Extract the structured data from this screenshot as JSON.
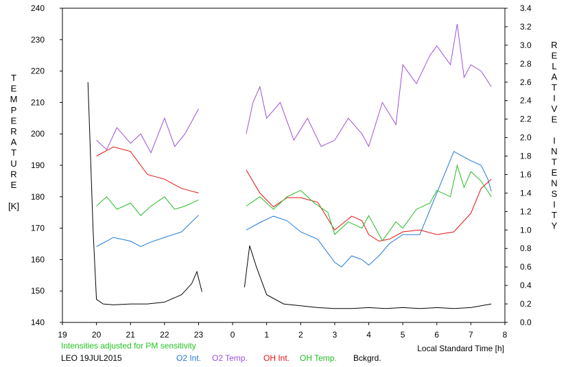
{
  "chart_data": {
    "type": "line",
    "left_axis_label": [
      "T",
      "E",
      "M",
      "P",
      "E",
      "R",
      "A",
      "T",
      "U",
      "R",
      "E",
      "",
      "[K]"
    ],
    "right_axis_label": [
      "R",
      "E",
      "L",
      "A",
      "T",
      "I",
      "V",
      "E",
      "",
      "I",
      "N",
      "T",
      "E",
      "N",
      "S",
      "I",
      "T",
      "Y"
    ],
    "xlabel": "Local Standard Time [h]",
    "x_ticks": [
      "19",
      "20",
      "21",
      "22",
      "23",
      "0",
      "1",
      "2",
      "3",
      "4",
      "5",
      "6",
      "7",
      "8"
    ],
    "xlim": [
      19,
      32
    ],
    "y_left_ticks": [
      "140",
      "150",
      "160",
      "170",
      "180",
      "190",
      "200",
      "210",
      "220",
      "230",
      "240"
    ],
    "ylim_left": [
      140,
      240
    ],
    "y_right_ticks": [
      "0.0",
      "0.2",
      "0.4",
      "0.6",
      "0.8",
      "1.0",
      "1.2",
      "1.4",
      "1.6",
      "1.8",
      "2.0",
      "2.2",
      "2.4",
      "2.6",
      "2.8",
      "3.0",
      "3.2",
      "3.4"
    ],
    "ylim_right": [
      0,
      3.4
    ],
    "note": "Intensities adjusted for PM sensitivity",
    "station_date": "LEO 19JUL2015",
    "grid": false,
    "legend_position": "bottom",
    "series": [
      {
        "name": "O2 Int.",
        "axis": "right",
        "color": "#1f78d4",
        "x": [
          20.0,
          20.5,
          21.0,
          21.3,
          21.6,
          22.0,
          22.5,
          23.0,
          24.4,
          24.8,
          25.2,
          25.6,
          26.0,
          26.5,
          27.0,
          27.2,
          27.5,
          27.8,
          28.0,
          28.3,
          28.6,
          29.0,
          29.5,
          30.0,
          30.5,
          31.0,
          31.3,
          31.5,
          31.6
        ],
        "values": [
          0.82,
          0.92,
          0.88,
          0.82,
          0.87,
          0.92,
          0.98,
          1.16,
          1.0,
          1.08,
          1.15,
          1.1,
          0.98,
          0.9,
          0.65,
          0.6,
          0.72,
          0.68,
          0.62,
          0.72,
          0.85,
          0.95,
          0.95,
          1.4,
          1.85,
          1.75,
          1.7,
          1.55,
          1.42
        ]
      },
      {
        "name": "O2 Temp.",
        "axis": "left",
        "color": "#9b4fd8",
        "x": [
          20.0,
          20.3,
          20.6,
          21.0,
          21.3,
          21.6,
          22.0,
          22.3,
          22.6,
          23.0,
          24.4,
          24.6,
          24.8,
          25.0,
          25.4,
          25.8,
          26.2,
          26.6,
          27.0,
          27.4,
          27.8,
          28.0,
          28.4,
          28.8,
          29.0,
          29.4,
          29.8,
          30.0,
          30.4,
          30.6,
          30.8,
          31.0,
          31.3,
          31.6
        ],
        "values": [
          198,
          195,
          202,
          197,
          200,
          194,
          205,
          196,
          200,
          208,
          200,
          210,
          215,
          205,
          210,
          198,
          205,
          196,
          198,
          205,
          200,
          196,
          210,
          203,
          222,
          216,
          225,
          228,
          222,
          235,
          218,
          222,
          220,
          215
        ]
      },
      {
        "name": "OH Int.",
        "axis": "right",
        "color": "#e01010",
        "x": [
          20.0,
          20.5,
          21.0,
          21.5,
          22.0,
          22.5,
          22.8,
          23.0,
          24.4,
          24.8,
          25.2,
          25.6,
          26.0,
          26.5,
          27.0,
          27.5,
          27.8,
          28.0,
          28.3,
          28.6,
          29.0,
          29.5,
          30.0,
          30.5,
          31.0,
          31.3,
          31.6
        ],
        "values": [
          1.8,
          1.9,
          1.85,
          1.6,
          1.55,
          1.45,
          1.42,
          1.4,
          1.65,
          1.4,
          1.25,
          1.35,
          1.35,
          1.3,
          1.0,
          1.15,
          1.1,
          0.95,
          0.88,
          0.9,
          0.98,
          1.0,
          0.95,
          0.98,
          1.18,
          1.45,
          1.55
        ]
      },
      {
        "name": "OH Temp.",
        "axis": "left",
        "color": "#22bb22",
        "x": [
          20.0,
          20.3,
          20.6,
          21.0,
          21.3,
          21.6,
          22.0,
          22.3,
          22.6,
          23.0,
          24.4,
          24.8,
          25.2,
          25.6,
          26.0,
          26.4,
          26.8,
          27.0,
          27.4,
          27.8,
          28.0,
          28.4,
          28.8,
          29.0,
          29.4,
          29.8,
          30.0,
          30.4,
          30.6,
          30.8,
          31.0,
          31.3,
          31.6
        ],
        "values": [
          177,
          180,
          176,
          178,
          174,
          177,
          180,
          176,
          177,
          179,
          177,
          180,
          176,
          180,
          182,
          178,
          175,
          168,
          172,
          170,
          174,
          166,
          172,
          170,
          176,
          178,
          182,
          180,
          190,
          183,
          188,
          185,
          180
        ]
      },
      {
        "name": "Bckgrd.",
        "axis": "right",
        "color": "#000000",
        "x": [
          19.75,
          19.9,
          20.0,
          20.2,
          20.5,
          21.0,
          21.5,
          22.0,
          22.5,
          22.8,
          22.95,
          23.1,
          24.35,
          24.5,
          24.7,
          25.0,
          25.5,
          26.0,
          26.5,
          27.0,
          27.5,
          28.0,
          28.5,
          29.0,
          29.5,
          30.0,
          30.5,
          31.0,
          31.3,
          31.6
        ],
        "values": [
          2.6,
          1.0,
          0.25,
          0.2,
          0.19,
          0.2,
          0.2,
          0.22,
          0.3,
          0.42,
          0.55,
          0.33,
          0.38,
          0.83,
          0.6,
          0.3,
          0.2,
          0.18,
          0.16,
          0.15,
          0.15,
          0.16,
          0.15,
          0.16,
          0.15,
          0.16,
          0.15,
          0.16,
          0.18,
          0.2
        ]
      }
    ]
  }
}
